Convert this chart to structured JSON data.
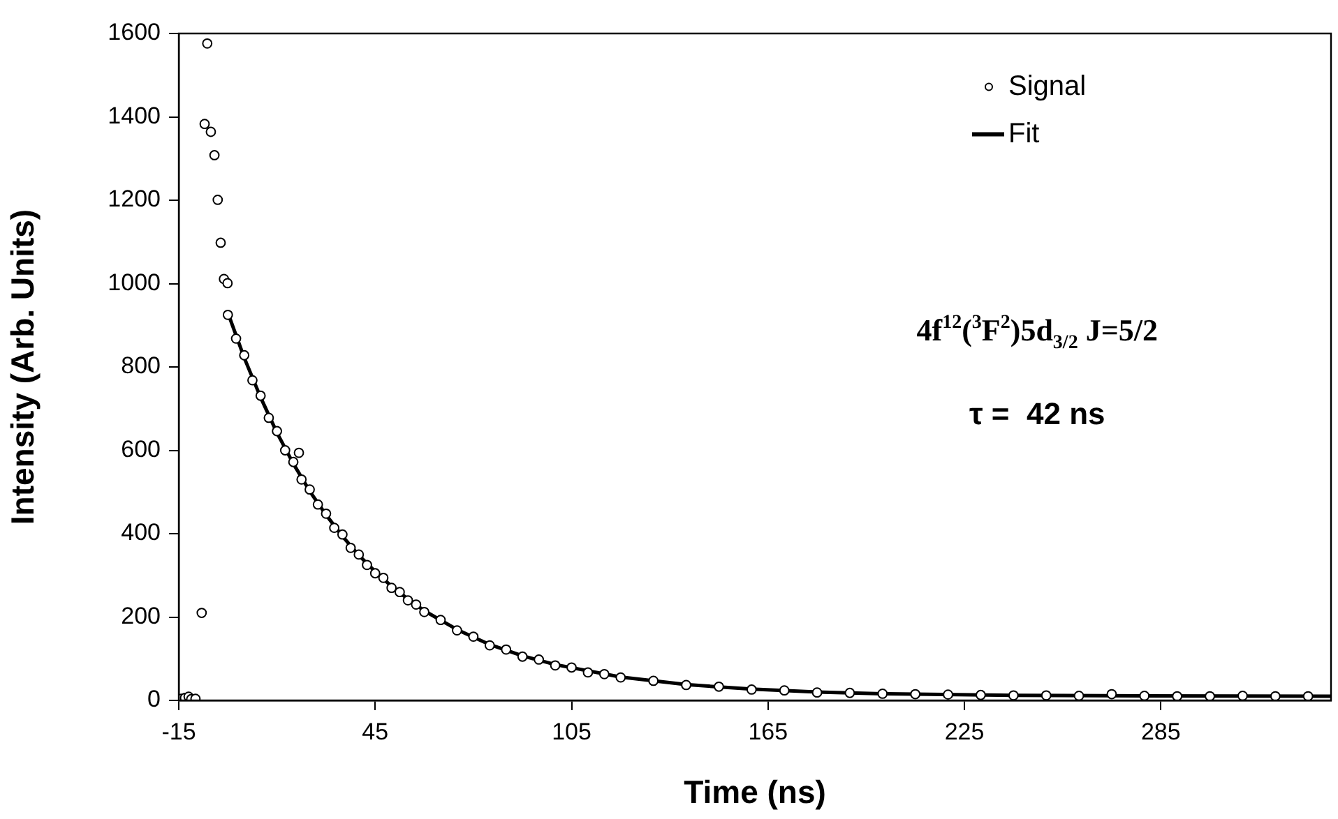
{
  "chart_data": {
    "type": "scatter",
    "xlabel": "Time (ns)",
    "ylabel": "Intensity (Arb. Units)",
    "xlim": [
      -15,
      337
    ],
    "xticks": [
      -15,
      45,
      105,
      165,
      225,
      285
    ],
    "ylim": [
      0,
      1600
    ],
    "yticks": [
      0,
      200,
      400,
      600,
      800,
      1000,
      1200,
      1400,
      1600
    ],
    "grid": false,
    "legend": "top right",
    "annotations": [
      "4f$^{12}$($^{3}$F$^{2}$)5d$_{3/2}$ J=5/2",
      "τ =  42 ns"
    ],
    "series": [
      {
        "name": "Signal",
        "type": "scatter",
        "marker": "circle",
        "color": "#000000",
        "x": [
          -14.2,
          -13.1,
          -12,
          -11.2,
          -9.9,
          -8,
          -7.1,
          -6.3,
          -5.2,
          -4.1,
          -3.1,
          -2.2,
          -1.2,
          -0.1,
          0,
          2.5,
          5,
          7.5,
          10,
          12.5,
          15,
          17.5,
          20,
          21.7,
          22.5,
          25,
          27.5,
          30,
          32.5,
          35,
          37.5,
          40,
          42.5,
          45,
          47.5,
          50,
          52.5,
          55,
          57.5,
          60,
          65,
          70,
          75,
          80,
          85,
          90,
          95,
          100,
          105,
          110,
          115,
          120,
          130,
          140,
          150,
          160,
          170,
          180,
          190,
          200,
          210,
          220,
          230,
          240,
          250,
          260,
          270,
          280,
          290,
          300,
          310,
          320,
          330
        ],
        "values": [
          4,
          6,
          9,
          3,
          4,
          210,
          1383,
          1576,
          1364,
          1308,
          1201,
          1098,
          1011,
          1001,
          925,
          868,
          828,
          768,
          731,
          678,
          646,
          600,
          572,
          594,
          530,
          506,
          470,
          448,
          414,
          398,
          366,
          350,
          325,
          305,
          294,
          270,
          260,
          240,
          230,
          212,
          193,
          168,
          153,
          132,
          122,
          105,
          98,
          84,
          79,
          67,
          63,
          55,
          47,
          37,
          33,
          26,
          24,
          19,
          18,
          16,
          15,
          14,
          13,
          12,
          12,
          11,
          15,
          11,
          10,
          10,
          11,
          10,
          10
        ]
      },
      {
        "name": "Fit",
        "type": "line",
        "marker": "none",
        "color": "#000000",
        "line_style": "solid",
        "x": [
          0,
          5,
          10,
          15,
          20,
          25,
          30,
          35,
          40,
          45,
          50,
          55,
          60,
          70,
          80,
          90,
          100,
          120,
          140,
          160,
          180,
          200,
          240,
          280,
          337
        ],
        "values": [
          930,
          822,
          727,
          642,
          568,
          502,
          445,
          394,
          348,
          309,
          274,
          243,
          215,
          170,
          134,
          107,
          86,
          56,
          38,
          27,
          20,
          16,
          12,
          11,
          10
        ]
      }
    ]
  }
}
